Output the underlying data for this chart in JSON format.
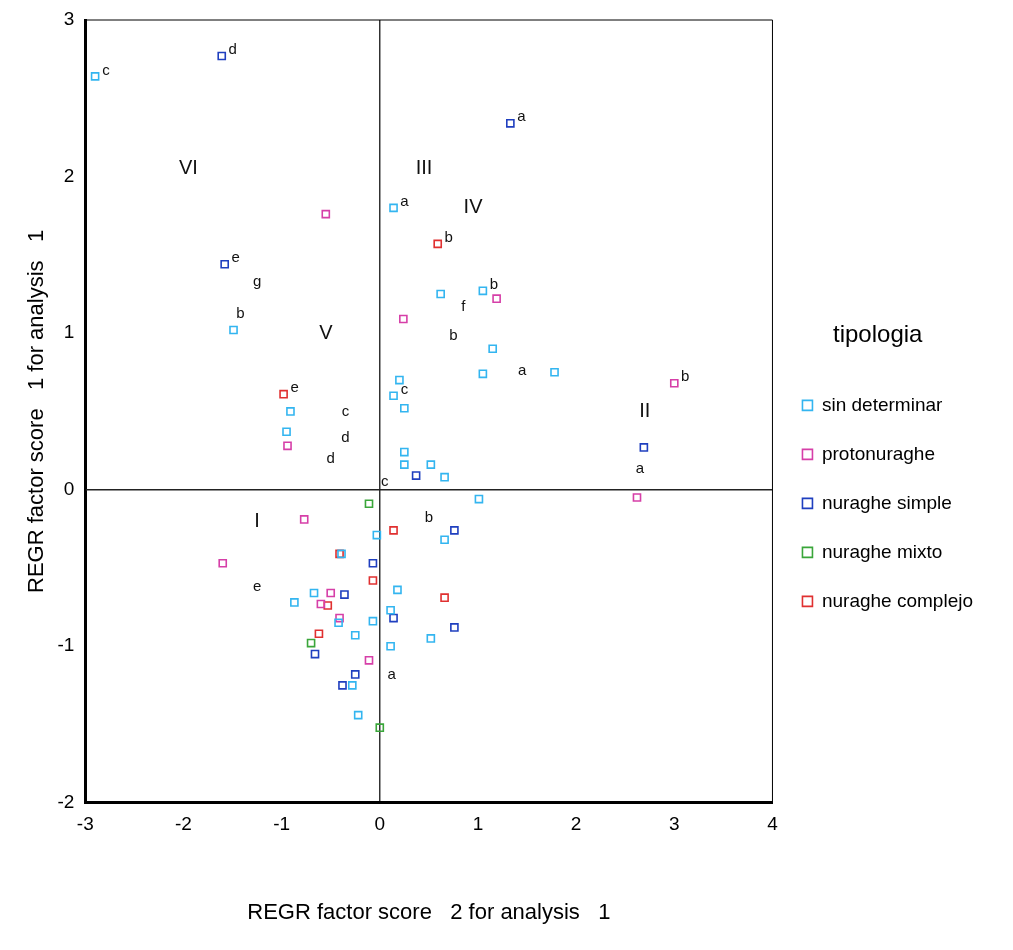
{
  "chart_data": {
    "type": "scatter",
    "xlabel": "REGR factor score   2 for analysis   1",
    "ylabel": "REGR factor score   1 for analysis   1",
    "legend_title": "tipologia",
    "legend": "right",
    "marker": "square",
    "grid": false,
    "xlim": [
      -3,
      4
    ],
    "xticks": [
      -3,
      -2,
      -1,
      0,
      1,
      2,
      3,
      4
    ],
    "ylim": [
      -2,
      3
    ],
    "yticks": [
      -2,
      -1,
      0,
      1,
      2,
      3
    ],
    "ref_lines": [
      {
        "axis": "x",
        "value": 0,
        "color": "#000000"
      },
      {
        "axis": "y",
        "value": 0,
        "color": "#222222"
      }
    ],
    "series": [
      {
        "name": "sin determinar",
        "color": "#33b5f0",
        "x": [
          -2.9,
          -1.49,
          0.14,
          0.62,
          1.05,
          1.15,
          1.05,
          1.78,
          0.2,
          0.14,
          0.25,
          -0.91,
          -0.95,
          0.25,
          0.25,
          0.52,
          0.66,
          1.01,
          -0.03,
          0.66,
          -0.39,
          0.18,
          -0.67,
          -0.87,
          0.11,
          -0.07,
          -0.25,
          -0.42,
          0.52,
          0.11,
          -0.28,
          -0.22
        ],
        "values": [
          2.64,
          1.02,
          1.8,
          1.25,
          1.27,
          0.9,
          0.74,
          0.75,
          0.7,
          0.6,
          0.52,
          0.5,
          0.37,
          0.24,
          0.16,
          0.16,
          0.08,
          -0.06,
          -0.29,
          -0.32,
          -0.41,
          -0.64,
          -0.66,
          -0.72,
          -0.77,
          -0.84,
          -0.93,
          -0.85,
          -0.95,
          -1.0,
          -1.25,
          -1.44
        ]
      },
      {
        "name": "protonuraghe",
        "color": "#d63fa8",
        "x": [
          -0.55,
          0.24,
          1.19,
          -0.94,
          -0.77,
          -1.6,
          -0.5,
          -0.6,
          -0.41,
          -0.11,
          2.62,
          3.0
        ],
        "values": [
          1.76,
          1.09,
          1.22,
          0.28,
          -0.19,
          -0.47,
          -0.66,
          -0.73,
          -0.82,
          -1.09,
          -0.05,
          0.68
        ]
      },
      {
        "name": "nuraghe simple",
        "color": "#1f3fbf",
        "x": [
          -1.61,
          -1.58,
          1.33,
          0.37,
          0.76,
          -0.07,
          -0.36,
          0.14,
          0.76,
          -0.66,
          -0.25,
          -0.38,
          2.69
        ],
        "values": [
          2.77,
          1.44,
          2.34,
          0.09,
          -0.26,
          -0.47,
          -0.67,
          -0.82,
          -0.88,
          -1.05,
          -1.18,
          -1.25,
          0.27
        ]
      },
      {
        "name": "nuraghe mixto",
        "color": "#3aa63a",
        "x": [
          -0.11,
          -0.7,
          0.0
        ],
        "values": [
          -0.09,
          -0.98,
          -1.52
        ]
      },
      {
        "name": "nuraghe complejo",
        "color": "#e03030",
        "x": [
          0.59,
          -0.98,
          0.14,
          -0.41,
          -0.07,
          0.66,
          -0.53,
          -0.62
        ],
        "values": [
          1.57,
          0.61,
          -0.26,
          -0.41,
          -0.58,
          -0.69,
          -0.74,
          -0.92
        ]
      }
    ],
    "annotations": [
      "VI",
      "g",
      "V",
      "III",
      "IV",
      "f",
      "b",
      "a",
      "c",
      "d",
      "d",
      "c",
      "I",
      "b",
      "e",
      "a",
      "II",
      "a",
      {
        "text": "c",
        "x": -2.9,
        "y": 2.64
      },
      {
        "text": "d",
        "x": -1.61,
        "y": 2.77
      },
      {
        "text": "e",
        "x": -1.58,
        "y": 1.44
      },
      "b",
      {
        "text": "a",
        "x": 0.14,
        "y": 1.8
      },
      {
        "text": "b",
        "x": 0.59,
        "y": 1.57
      },
      {
        "text": "a",
        "x": 1.33,
        "y": 2.34
      },
      {
        "text": "b",
        "x": 1.05,
        "y": 1.27
      },
      {
        "text": "b",
        "x": 3.0,
        "y": 0.68
      },
      {
        "text": "e",
        "x": -0.98,
        "y": 0.61
      },
      {
        "text": "c",
        "x": 0.14,
        "y": 0.6
      }
    ]
  }
}
